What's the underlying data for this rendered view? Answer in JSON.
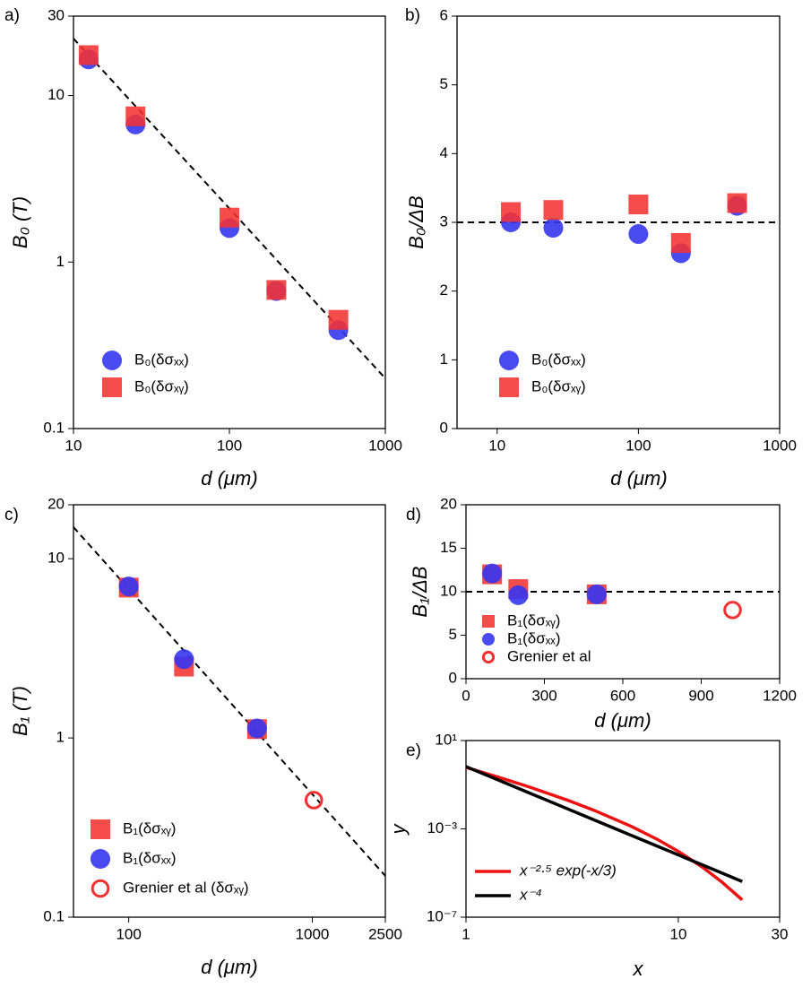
{
  "chart_data": [
    {
      "type": "scatter",
      "label": "a)",
      "xlabel": "d (μm)",
      "ylabel": "B₀ (T)",
      "xlog": true,
      "ylog": true,
      "xlim": [
        10,
        1000
      ],
      "ylim": [
        0.1,
        30
      ],
      "xticks": [
        10,
        100,
        1000
      ],
      "yticks": [
        0.1,
        1,
        10,
        30
      ],
      "legend": "lower left",
      "series": [
        {
          "name": "B₀(δσₓₓ)",
          "color": "#3636f0",
          "marker": "circle",
          "x": [
            12.5,
            25,
            100,
            200,
            500
          ],
          "values": [
            16.5,
            6.7,
            1.6,
            0.67,
            0.39
          ]
        },
        {
          "name": "B₀(δσₓᵧ)",
          "color": "#f23232",
          "marker": "square",
          "x": [
            12.5,
            25,
            100,
            200,
            500
          ],
          "values": [
            17.5,
            7.5,
            1.85,
            0.68,
            0.45
          ]
        }
      ],
      "lines": [
        {
          "style": "dashed",
          "color": "#000000",
          "x": [
            10,
            1000
          ],
          "values": [
            22,
            0.2
          ]
        }
      ]
    },
    {
      "type": "scatter",
      "label": "b)",
      "xlabel": "d (μm)",
      "ylabel": "B₀/ΔB",
      "xlog": true,
      "ylog": false,
      "xlim": [
        5.2,
        1000
      ],
      "ylim": [
        0,
        6
      ],
      "xticks": [
        10,
        100,
        1000
      ],
      "yticks": [
        0,
        1,
        2,
        3,
        4,
        5,
        6
      ],
      "legend": "lower left",
      "series": [
        {
          "name": "B₀(δσₓₓ)",
          "color": "#3636f0",
          "marker": "circle",
          "x": [
            12.5,
            25,
            100,
            200,
            500
          ],
          "values": [
            3.0,
            2.92,
            2.83,
            2.55,
            3.24
          ]
        },
        {
          "name": "B₀(δσₓᵧ)",
          "color": "#f23232",
          "marker": "square",
          "x": [
            12.5,
            25,
            100,
            200,
            500
          ],
          "values": [
            3.15,
            3.18,
            3.26,
            2.7,
            3.28
          ]
        }
      ],
      "lines": [
        {
          "style": "dashed",
          "color": "#000000",
          "x": [
            5.2,
            1000
          ],
          "values": [
            3,
            3
          ]
        }
      ]
    },
    {
      "type": "scatter",
      "label": "c)",
      "xlabel": "d (μm)",
      "ylabel": "B₁ (T)",
      "xlog": true,
      "ylog": true,
      "xlim": [
        50,
        2500
      ],
      "ylim": [
        0.1,
        20
      ],
      "xticks": [
        100,
        1000,
        2500
      ],
      "yticks": [
        0.1,
        1,
        10,
        20
      ],
      "legend": "lower left",
      "series": [
        {
          "name": "B₁(δσₓᵧ)",
          "color": "#f23232",
          "marker": "square",
          "x": [
            100,
            200,
            500
          ],
          "values": [
            6.9,
            2.5,
            1.12
          ]
        },
        {
          "name": "B₁(δσₓₓ)",
          "color": "#3636f0",
          "marker": "circle",
          "x": [
            100,
            200,
            500
          ],
          "values": [
            7.0,
            2.75,
            1.13
          ]
        },
        {
          "name": "Grenier et al (δσₓᵧ)",
          "color": "#f23232",
          "marker": "open-circle",
          "x": [
            1020
          ],
          "values": [
            0.45
          ]
        }
      ],
      "lines": [
        {
          "style": "dashed",
          "color": "#000000",
          "x": [
            50,
            2500
          ],
          "values": [
            15,
            0.17
          ]
        }
      ]
    },
    {
      "type": "scatter",
      "label": "d)",
      "xlabel": "d (μm)",
      "ylabel": "B₁/ΔB",
      "xlog": false,
      "ylog": false,
      "xlim": [
        0,
        1200
      ],
      "ylim": [
        0,
        20
      ],
      "xticks": [
        0,
        300,
        600,
        900,
        1200
      ],
      "yticks": [
        0,
        5,
        10,
        15,
        20
      ],
      "legend": "center left",
      "series": [
        {
          "name": "B₁(δσₓᵧ)",
          "color": "#f23232",
          "marker": "square",
          "x": [
            100,
            200,
            500
          ],
          "values": [
            12.0,
            10.3,
            9.7
          ]
        },
        {
          "name": "B₁(δσₓₓ)",
          "color": "#3636f0",
          "marker": "circle",
          "x": [
            100,
            200,
            500
          ],
          "values": [
            12.1,
            9.6,
            9.7
          ]
        },
        {
          "name": "Grenier et al",
          "color": "#f23232",
          "marker": "open-circle",
          "x": [
            1020
          ],
          "values": [
            7.9
          ]
        }
      ],
      "lines": [
        {
          "style": "dashed",
          "color": "#000000",
          "x": [
            0,
            1200
          ],
          "values": [
            10,
            10
          ]
        }
      ]
    },
    {
      "type": "line",
      "label": "e)",
      "xlabel": "x",
      "ylabel": "y",
      "xlog": true,
      "ylog": true,
      "xlim": [
        1,
        30
      ],
      "ylim": [
        1e-07,
        10
      ],
      "xticks": [
        1,
        10,
        30
      ],
      "yticks": [
        {
          "value": 10,
          "label": "10¹"
        },
        {
          "value": 0.001,
          "label": "10⁻³"
        },
        {
          "value": 1e-07,
          "label": "10⁻⁷"
        }
      ],
      "legend": "lower left",
      "x": [
        1,
        1.5,
        2,
        3,
        4,
        6,
        8,
        10,
        13,
        16,
        20
      ],
      "series": [
        {
          "name": "x⁻²·⁵ exp(-x/3)",
          "color": "#ee1111",
          "values": [
            0.609,
            0.187,
            0.0772,
            0.02006,
            0.007,
            0.001305,
            0.000326,
            9.59e-05,
            1.83e-05,
            4e-06,
            6.05e-07
          ]
        },
        {
          "name": "x⁻⁴",
          "color": "#000000",
          "values": [
            0.66,
            0.1304,
            0.04125,
            0.00815,
            0.00258,
            0.000509,
            0.000161,
            6.6e-05,
            2.31e-05,
            1.01e-05,
            4.13e-06
          ]
        }
      ]
    }
  ]
}
